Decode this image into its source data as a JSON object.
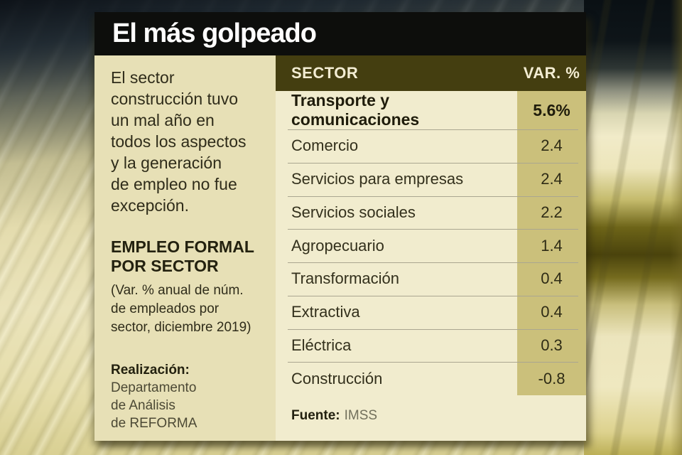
{
  "title": "El más golpeado",
  "intro_text": "El sector\nconstrucción tuvo\nun mal año en\ntodos los aspectos\ny la generación\nde empleo no fue\nexcepción.",
  "section": {
    "heading": "EMPLEO FORMAL\nPOR SECTOR",
    "note": "(Var. % anual de núm.\nde empleados por\nsector, diciembre 2019)"
  },
  "credit": {
    "label": "Realización:",
    "team": "Departamento\nde Análisis\nde REFORMA"
  },
  "table": {
    "header_sector": "SECTOR",
    "header_var": "VAR. %",
    "rows": [
      {
        "sector": "Transporte y comunicaciones",
        "value": "5.6%",
        "highlight": true
      },
      {
        "sector": "Comercio",
        "value": "2.4",
        "highlight": false
      },
      {
        "sector": "Servicios para empresas",
        "value": "2.4",
        "highlight": false
      },
      {
        "sector": "Servicios sociales",
        "value": "2.2",
        "highlight": false
      },
      {
        "sector": "Agropecuario",
        "value": "1.4",
        "highlight": false
      },
      {
        "sector": "Transformación",
        "value": "0.4",
        "highlight": false
      },
      {
        "sector": "Extractiva",
        "value": "0.4",
        "highlight": false
      },
      {
        "sector": "Eléctrica",
        "value": "0.3",
        "highlight": false
      },
      {
        "sector": "Construcción",
        "value": "-0.8",
        "highlight": false
      }
    ]
  },
  "source": {
    "label": "Fuente:",
    "value": "IMSS"
  },
  "colors": {
    "title_bar": "#0d0e0c",
    "left_panel": "#e7e0b6",
    "table_panel": "#f1ecce",
    "header_olive": "#443e10",
    "header_text": "#f3edd3",
    "value_band_khaki": "#cbc07b",
    "row_text": "#33301c"
  },
  "chart_data": {
    "type": "table",
    "title": "El más golpeado",
    "subtitle": "EMPLEO FORMAL POR SECTOR (Var. % anual de núm. de empleados por sector, diciembre 2019)",
    "columns": [
      "SECTOR",
      "VAR. %"
    ],
    "categories": [
      "Transporte y comunicaciones",
      "Comercio",
      "Servicios para empresas",
      "Servicios sociales",
      "Agropecuario",
      "Transformación",
      "Extractiva",
      "Eléctrica",
      "Construcción"
    ],
    "values": [
      5.6,
      2.4,
      2.4,
      2.2,
      1.4,
      0.4,
      0.4,
      0.3,
      -0.8
    ],
    "highlighted_row": "Transporte y comunicaciones",
    "source": "IMSS"
  }
}
